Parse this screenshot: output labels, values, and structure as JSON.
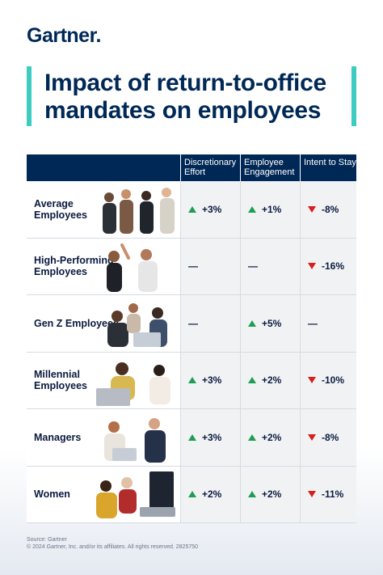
{
  "brand": {
    "name": "Gartner",
    "dot": "."
  },
  "title": "Impact of return-to-office mandates on employees",
  "chart_data": {
    "type": "table",
    "columns": [
      "Discretionary Effort",
      "Employee Engagement",
      "Intent to Stay"
    ],
    "rows": [
      {
        "label": "Average Employees",
        "values": [
          "+3%",
          "+1%",
          "-8%"
        ],
        "direction": [
          "up",
          "up",
          "down"
        ]
      },
      {
        "label": "High-Performing Employees",
        "values": [
          "—",
          "—",
          "-16%"
        ],
        "direction": [
          "none",
          "none",
          "down"
        ]
      },
      {
        "label": "Gen Z Employees",
        "values": [
          "—",
          "+5%",
          "—"
        ],
        "direction": [
          "none",
          "up",
          "none"
        ]
      },
      {
        "label": "Millennial Employees",
        "values": [
          "+3%",
          "+2%",
          "-10%"
        ],
        "direction": [
          "up",
          "up",
          "down"
        ]
      },
      {
        "label": "Managers",
        "values": [
          "+3%",
          "+2%",
          "-8%"
        ],
        "direction": [
          "up",
          "up",
          "down"
        ]
      },
      {
        "label": "Women",
        "values": [
          "+2%",
          "+2%",
          "-11%"
        ],
        "direction": [
          "up",
          "up",
          "down"
        ]
      }
    ]
  },
  "colors": {
    "navy": "#002856",
    "teal": "#3ccdc0",
    "up": "#1f9d55",
    "down": "#d81e1e"
  },
  "footer": {
    "source": "Source: Gartner",
    "copyright": "© 2024 Gartner, Inc. and/or its affiliates. All rights reserved. 2825750"
  }
}
